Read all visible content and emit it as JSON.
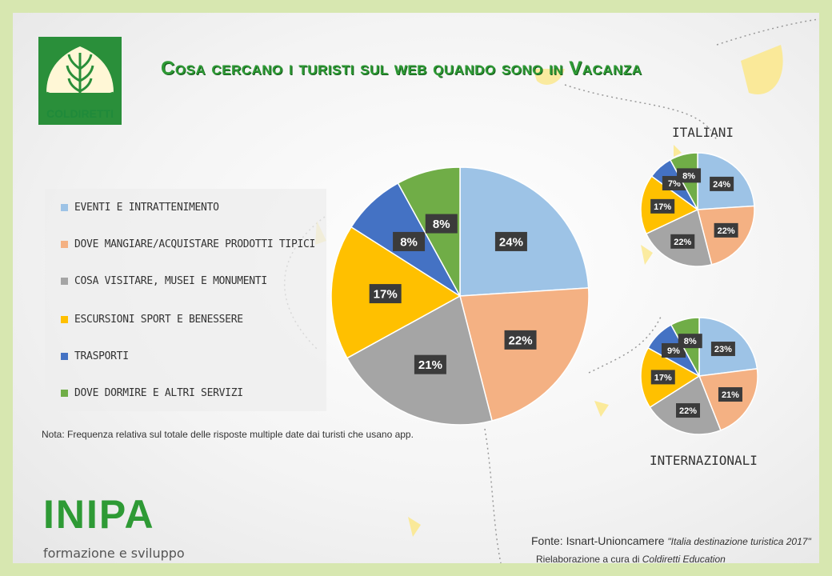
{
  "header": {
    "title": "Cosa cercano i turisti sul web quando sono in Vacanza",
    "logo_text": "COLDIRETTI"
  },
  "note": "Nota: Frequenza relativa sul totale delle risposte multiple date dai turisti che usano app.",
  "footer": {
    "brand": "INIPA",
    "brand_sub": "formazione e sviluppo",
    "source_label": "Fonte: Isnart-Unioncamere",
    "source_title": "\"Italia destinazione turistica 2017\"",
    "credit_label": "Rielaborazione a cura di",
    "credit_name": "Coldiretti Education"
  },
  "colors": {
    "eventi": "#9dc3e6",
    "mangiare": "#f4b183",
    "visitare": "#a5a5a5",
    "escursioni": "#ffc000",
    "trasporti": "#4472c4",
    "dormire": "#70ad47",
    "title_green": "#2e9a35"
  },
  "chart_data": [
    {
      "type": "pie",
      "title": "",
      "categories": [
        "Eventi e intrattenimento",
        "Dove mangiare/acquistare prodotti tipici",
        "Cosa visitare, musei e monumenti",
        "Escursioni sport e benessere",
        "Trasporti",
        "Dove dormire e altri servizi"
      ],
      "values": [
        24,
        22,
        21,
        17,
        8,
        8
      ],
      "labels": [
        "24%",
        "22%",
        "21%",
        "17%",
        "8%",
        "8%"
      ],
      "legend": "left"
    },
    {
      "type": "pie",
      "title": "ITALIANI",
      "categories": [
        "Eventi e intrattenimento",
        "Dove mangiare/acquistare prodotti tipici",
        "Cosa visitare, musei e monumenti",
        "Escursioni sport e benessere",
        "Trasporti",
        "Dove dormire e altri servizi"
      ],
      "values": [
        24,
        22,
        22,
        17,
        7,
        8
      ],
      "labels": [
        "24%",
        "22%",
        "22%",
        "17%",
        "7%",
        "8%"
      ]
    },
    {
      "type": "pie",
      "title": "INTERNAZIONALI",
      "categories": [
        "Eventi e intrattenimento",
        "Dove mangiare/acquistare prodotti tipici",
        "Cosa visitare, musei e monumenti",
        "Escursioni sport e benessere",
        "Trasporti",
        "Dove dormire e altri servizi"
      ],
      "values": [
        23,
        21,
        22,
        17,
        9,
        8
      ],
      "labels": [
        "23%",
        "21%",
        "22%",
        "17%",
        "9%",
        "8%"
      ]
    }
  ]
}
